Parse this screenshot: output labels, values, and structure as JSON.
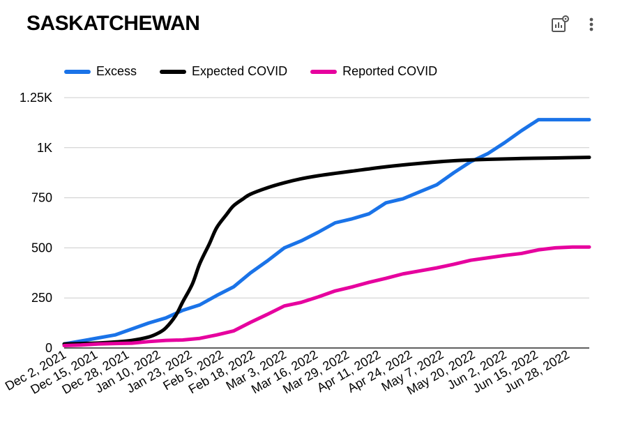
{
  "header": {
    "title": "SASKATCHEWAN"
  },
  "toolbar": {
    "chart_settings_icon": "chart-settings-icon",
    "more_icon": "more-vert-icon"
  },
  "colors": {
    "excess": "#1a73e8",
    "expected": "#000000",
    "reported": "#e6009e",
    "grid": "#cccccc"
  },
  "chart_data": {
    "type": "line",
    "title": "SASKATCHEWAN",
    "xlabel": "",
    "ylabel": "",
    "x_ticks": [
      "Dec 2, 2021",
      "Dec 15, 2021",
      "Dec 28, 2021",
      "Jan 10, 2022",
      "Jan 23, 2022",
      "Feb 5, 2022",
      "Feb 18, 2022",
      "Mar 3, 2022",
      "Mar 16, 2022",
      "Mar 29, 2022",
      "Apr 11, 2022",
      "Apr 24, 2022",
      "May 7, 2022",
      "May 20, 2022",
      "Jun 2, 2022",
      "Jun 15, 2022",
      "Jun 28, 2022"
    ],
    "y_ticks": [
      "0",
      "250",
      "500",
      "750",
      "1K",
      "1.25K"
    ],
    "ylim": [
      0,
      1250
    ],
    "grid": true,
    "legend_position": "top",
    "series": [
      {
        "name": "Excess",
        "color": "#1a73e8",
        "points": [
          [
            "Dec 2, 2021",
            20
          ],
          [
            "Dec 9, 2021",
            35
          ],
          [
            "Dec 16, 2021",
            50
          ],
          [
            "Dec 23, 2021",
            65
          ],
          [
            "Dec 30, 2021",
            95
          ],
          [
            "Jan 6, 2022",
            125
          ],
          [
            "Jan 13, 2022",
            150
          ],
          [
            "Jan 20, 2022",
            188
          ],
          [
            "Jan 27, 2022",
            215
          ],
          [
            "Feb 3, 2022",
            262
          ],
          [
            "Feb 10, 2022",
            305
          ],
          [
            "Feb 17, 2022",
            375
          ],
          [
            "Feb 24, 2022",
            435
          ],
          [
            "Mar 3, 2022",
            500
          ],
          [
            "Mar 10, 2022",
            535
          ],
          [
            "Mar 17, 2022",
            578
          ],
          [
            "Mar 24, 2022",
            625
          ],
          [
            "Mar 31, 2022",
            645
          ],
          [
            "Apr 7, 2022",
            670
          ],
          [
            "Apr 14, 2022",
            725
          ],
          [
            "Apr 21, 2022",
            745
          ],
          [
            "Apr 28, 2022",
            780
          ],
          [
            "May 5, 2022",
            815
          ],
          [
            "May 12, 2022",
            875
          ],
          [
            "May 19, 2022",
            930
          ],
          [
            "May 26, 2022",
            970
          ],
          [
            "Jun 2, 2022",
            1025
          ],
          [
            "Jun 9, 2022",
            1085
          ],
          [
            "Jun 16, 2022",
            1140
          ],
          [
            "Jun 23, 2022",
            1140
          ],
          [
            "Jun 30, 2022",
            1140
          ],
          [
            "Jul 7, 2022",
            1140
          ]
        ]
      },
      {
        "name": "Expected COVID",
        "color": "#000000",
        "points": [
          [
            "Dec 2, 2021",
            20
          ],
          [
            "Dec 9, 2021",
            22
          ],
          [
            "Dec 16, 2021",
            25
          ],
          [
            "Dec 23, 2021",
            30
          ],
          [
            "Dec 30, 2021",
            38
          ],
          [
            "Jan 6, 2022",
            55
          ],
          [
            "Jan 10, 2022",
            75
          ],
          [
            "Jan 13, 2022",
            100
          ],
          [
            "Jan 17, 2022",
            160
          ],
          [
            "Jan 20, 2022",
            230
          ],
          [
            "Jan 24, 2022",
            320
          ],
          [
            "Jan 27, 2022",
            420
          ],
          [
            "Jan 31, 2022",
            520
          ],
          [
            "Feb 3, 2022",
            600
          ],
          [
            "Feb 7, 2022",
            665
          ],
          [
            "Feb 10, 2022",
            710
          ],
          [
            "Feb 14, 2022",
            745
          ],
          [
            "Feb 17, 2022",
            768
          ],
          [
            "Feb 24, 2022",
            800
          ],
          [
            "Mar 3, 2022",
            825
          ],
          [
            "Mar 10, 2022",
            845
          ],
          [
            "Mar 17, 2022",
            860
          ],
          [
            "Mar 24, 2022",
            872
          ],
          [
            "Mar 31, 2022",
            883
          ],
          [
            "Apr 14, 2022",
            905
          ],
          [
            "Apr 28, 2022",
            922
          ],
          [
            "May 12, 2022",
            935
          ],
          [
            "May 26, 2022",
            942
          ],
          [
            "Jun 9, 2022",
            946
          ],
          [
            "Jun 23, 2022",
            949
          ],
          [
            "Jul 7, 2022",
            952
          ]
        ]
      },
      {
        "name": "Reported COVID",
        "color": "#e6009e",
        "points": [
          [
            "Dec 2, 2021",
            12
          ],
          [
            "Dec 9, 2021",
            15
          ],
          [
            "Dec 16, 2021",
            20
          ],
          [
            "Dec 23, 2021",
            22
          ],
          [
            "Dec 30, 2021",
            24
          ],
          [
            "Jan 6, 2022",
            32
          ],
          [
            "Jan 13, 2022",
            38
          ],
          [
            "Jan 20, 2022",
            40
          ],
          [
            "Jan 27, 2022",
            48
          ],
          [
            "Feb 3, 2022",
            65
          ],
          [
            "Feb 10, 2022",
            85
          ],
          [
            "Feb 17, 2022",
            128
          ],
          [
            "Feb 24, 2022",
            168
          ],
          [
            "Mar 3, 2022",
            210
          ],
          [
            "Mar 10, 2022",
            228
          ],
          [
            "Mar 17, 2022",
            255
          ],
          [
            "Mar 24, 2022",
            285
          ],
          [
            "Mar 31, 2022",
            305
          ],
          [
            "Apr 7, 2022",
            328
          ],
          [
            "Apr 14, 2022",
            348
          ],
          [
            "Apr 21, 2022",
            370
          ],
          [
            "Apr 28, 2022",
            385
          ],
          [
            "May 5, 2022",
            400
          ],
          [
            "May 12, 2022",
            418
          ],
          [
            "May 19, 2022",
            438
          ],
          [
            "May 26, 2022",
            450
          ],
          [
            "Jun 2, 2022",
            462
          ],
          [
            "Jun 9, 2022",
            472
          ],
          [
            "Jun 16, 2022",
            490
          ],
          [
            "Jun 23, 2022",
            500
          ],
          [
            "Jun 30, 2022",
            504
          ],
          [
            "Jul 7, 2022",
            504
          ]
        ]
      }
    ]
  }
}
